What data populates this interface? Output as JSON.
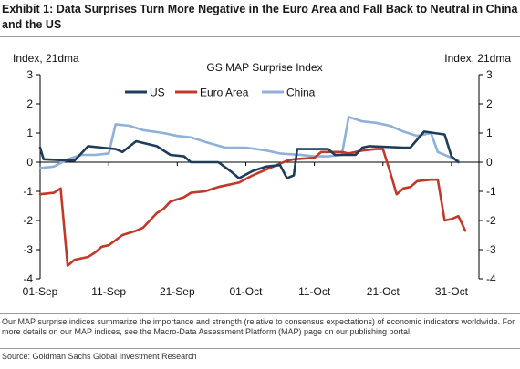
{
  "header": {
    "title": "Exhibit 1: Data Surprises Turn More Negative in the Euro Area and Fall Back to Neutral in China and the US"
  },
  "footer": {
    "note": "Our MAP surprise indices summarize the importance and strength (relative to consensus expectations) of economic indicators worldwide. For more details on our MAP indices, see the Macro-Data Assessment Platform (MAP) page on our publishing portal.",
    "source": "Source: Goldman Sachs Global Investment Research"
  },
  "colors": {
    "us": "#1f3c5a",
    "euro": "#c0392b",
    "china": "#8fb0d8",
    "axis": "#000000"
  },
  "chart_data": {
    "type": "line",
    "title": "GS MAP Surprise Index",
    "ylabel_left": "Index, 21dma",
    "ylabel_right": "Index, 21dma",
    "ylim": [
      -4,
      3
    ],
    "yticks": [
      -4,
      -3,
      -2,
      -1,
      0,
      1,
      2,
      3
    ],
    "xlim": [
      0,
      64
    ],
    "xticks": [
      {
        "x": 0,
        "label": "01-Sep"
      },
      {
        "x": 10,
        "label": "11-Sep"
      },
      {
        "x": 20,
        "label": "21-Sep"
      },
      {
        "x": 30,
        "label": "01-Oct"
      },
      {
        "x": 40,
        "label": "11-Oct"
      },
      {
        "x": 50,
        "label": "21-Oct"
      },
      {
        "x": 60,
        "label": "31-Oct"
      }
    ],
    "legend_position": "top",
    "grid": false,
    "series": [
      {
        "name": "US",
        "color_key": "us",
        "points": [
          [
            0,
            0.5
          ],
          [
            0.5,
            0.1
          ],
          [
            5,
            0.05
          ],
          [
            7,
            0.55
          ],
          [
            9,
            0.5
          ],
          [
            11,
            0.45
          ],
          [
            12,
            0.35
          ],
          [
            14,
            0.72
          ],
          [
            17,
            0.55
          ],
          [
            19,
            0.25
          ],
          [
            21,
            0.2
          ],
          [
            22,
            0.0
          ],
          [
            26,
            0.0
          ],
          [
            28,
            -0.35
          ],
          [
            29,
            -0.55
          ],
          [
            31,
            -0.3
          ],
          [
            33,
            -0.15
          ],
          [
            35,
            -0.1
          ],
          [
            36,
            -0.55
          ],
          [
            37,
            -0.45
          ],
          [
            37.5,
            0.45
          ],
          [
            42,
            0.45
          ],
          [
            43,
            0.25
          ],
          [
            46,
            0.25
          ],
          [
            47,
            0.5
          ],
          [
            48,
            0.55
          ],
          [
            53,
            0.5
          ],
          [
            54,
            0.5
          ],
          [
            56,
            1.05
          ],
          [
            59,
            0.95
          ],
          [
            60,
            0.2
          ],
          [
            61,
            0.0
          ]
        ]
      },
      {
        "name": "Euro Area",
        "color_key": "euro",
        "points": [
          [
            0,
            -1.1
          ],
          [
            2,
            -1.05
          ],
          [
            3,
            -0.9
          ],
          [
            4,
            -3.55
          ],
          [
            5,
            -3.35
          ],
          [
            7,
            -3.25
          ],
          [
            8,
            -3.1
          ],
          [
            9,
            -2.9
          ],
          [
            10,
            -2.85
          ],
          [
            12,
            -2.5
          ],
          [
            14,
            -2.35
          ],
          [
            15,
            -2.25
          ],
          [
            16,
            -2.0
          ],
          [
            17,
            -1.75
          ],
          [
            18,
            -1.6
          ],
          [
            19,
            -1.35
          ],
          [
            21,
            -1.2
          ],
          [
            22,
            -1.05
          ],
          [
            24,
            -1.0
          ],
          [
            26,
            -0.85
          ],
          [
            29,
            -0.7
          ],
          [
            31,
            -0.45
          ],
          [
            33,
            -0.25
          ],
          [
            35,
            -0.05
          ],
          [
            36,
            0.05
          ],
          [
            37,
            0.1
          ],
          [
            40,
            0.15
          ],
          [
            41,
            0.35
          ],
          [
            44,
            0.35
          ],
          [
            45,
            0.3
          ],
          [
            46,
            0.35
          ],
          [
            47,
            0.4
          ],
          [
            49,
            0.45
          ],
          [
            50,
            0.45
          ],
          [
            51,
            -0.3
          ],
          [
            52,
            -1.1
          ],
          [
            53,
            -0.9
          ],
          [
            54,
            -0.85
          ],
          [
            55,
            -0.65
          ],
          [
            57,
            -0.6
          ],
          [
            58,
            -0.6
          ],
          [
            59,
            -2.0
          ],
          [
            60,
            -1.95
          ],
          [
            61,
            -1.85
          ],
          [
            62,
            -2.35
          ]
        ]
      },
      {
        "name": "China",
        "color_key": "china",
        "points": [
          [
            0,
            -0.2
          ],
          [
            2,
            -0.15
          ],
          [
            4,
            0.1
          ],
          [
            6,
            0.25
          ],
          [
            8,
            0.25
          ],
          [
            10,
            0.3
          ],
          [
            11,
            1.3
          ],
          [
            13,
            1.25
          ],
          [
            15,
            1.1
          ],
          [
            18,
            1.0
          ],
          [
            20,
            0.9
          ],
          [
            22,
            0.85
          ],
          [
            24,
            0.7
          ],
          [
            27,
            0.5
          ],
          [
            30,
            0.5
          ],
          [
            33,
            0.4
          ],
          [
            35,
            0.3
          ],
          [
            38,
            0.25
          ],
          [
            40,
            0.2
          ],
          [
            42,
            0.2
          ],
          [
            44,
            0.25
          ],
          [
            45,
            1.55
          ],
          [
            47,
            1.4
          ],
          [
            49,
            1.35
          ],
          [
            51,
            1.25
          ],
          [
            53,
            1.05
          ],
          [
            55,
            0.9
          ],
          [
            57,
            1.0
          ],
          [
            58,
            0.35
          ],
          [
            60,
            0.15
          ],
          [
            61,
            0.05
          ]
        ]
      }
    ]
  }
}
